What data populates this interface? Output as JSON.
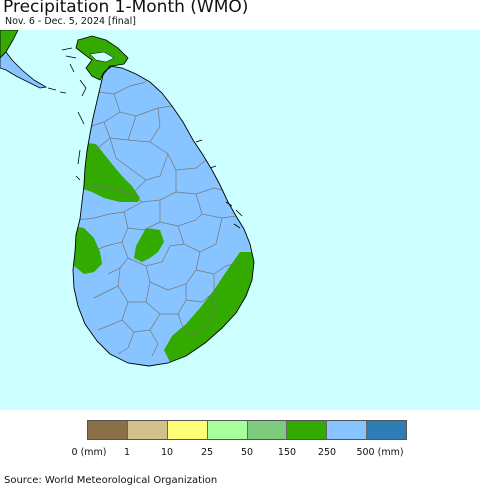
{
  "header": {
    "title": "Precipitation 1-Month (WMO)",
    "subtitle": "Nov. 6 - Dec. 5, 2024 [final]"
  },
  "map": {
    "region": "Sri Lanka",
    "colors": {
      "ocean": "#ccffff",
      "dominant_class": "#88c4ff",
      "secondary_class": "#33aa00",
      "boundary": "#777777",
      "coast": "#000000"
    }
  },
  "legend": {
    "ticks": [
      "0 (mm)",
      "1",
      "10",
      "25",
      "50",
      "150",
      "250",
      "500 (mm)"
    ],
    "swatches": [
      {
        "color": "#8b6f48"
      },
      {
        "color": "#d2c08a"
      },
      {
        "color": "#ffff77"
      },
      {
        "color": "#a8ff9e"
      },
      {
        "color": "#7ecb7e"
      },
      {
        "color": "#33aa00"
      },
      {
        "color": "#88c4ff"
      },
      {
        "color": "#2e7cb8"
      }
    ]
  },
  "footer": {
    "source": "Source: World Meteorological Organization"
  }
}
